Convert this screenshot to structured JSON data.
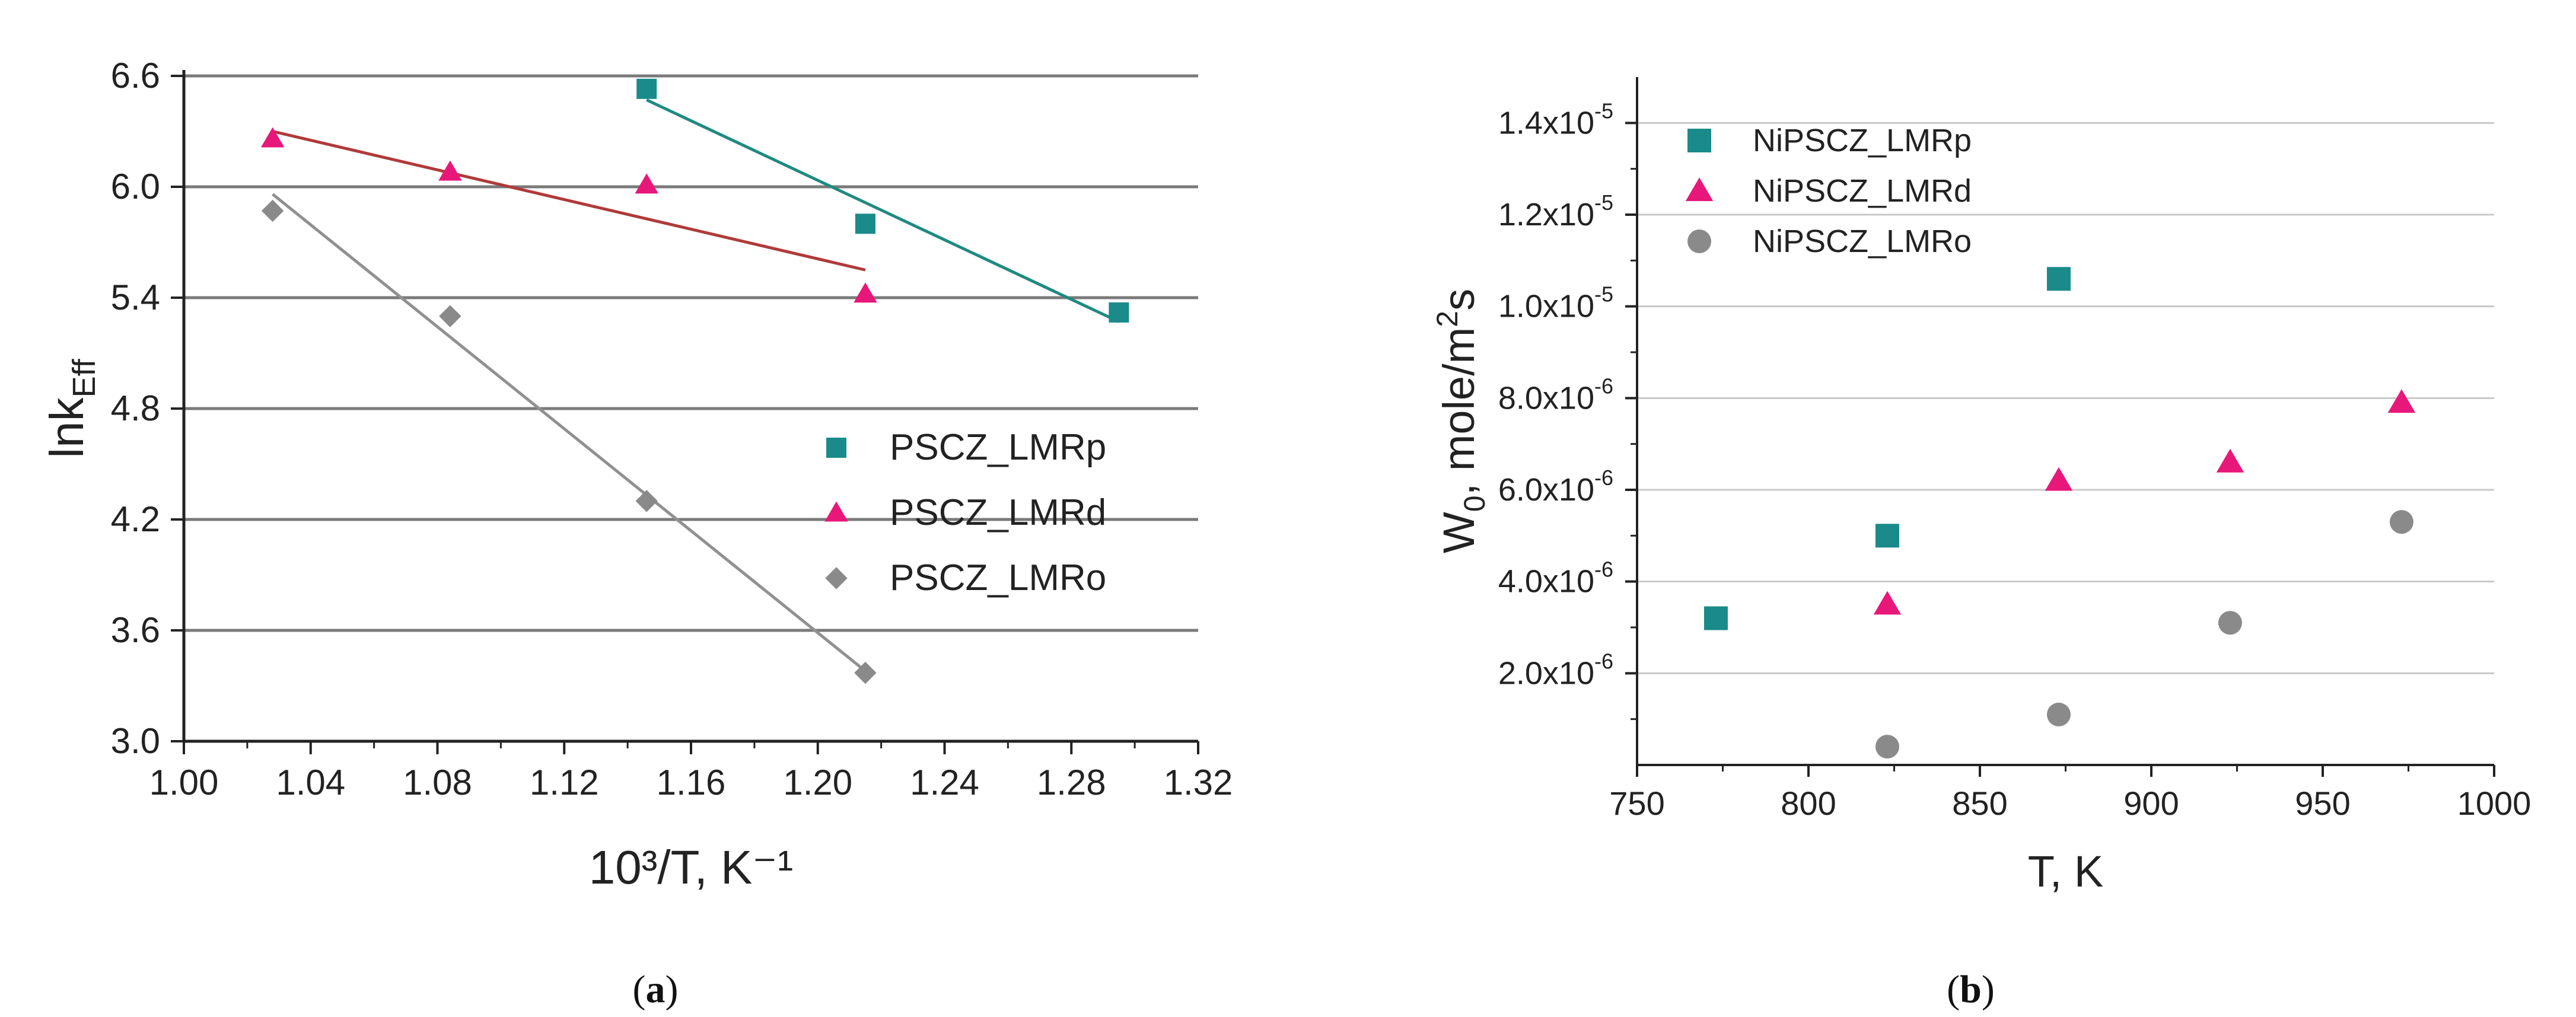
{
  "colors": {
    "p": "#1a8a8a",
    "d": "#e8177a",
    "o": "#8a8a8a",
    "fit_p": "#1f8a80",
    "fit_d": "#b03a3a",
    "fit_o": "#909090"
  },
  "chart_data": [
    {
      "id": "a",
      "type": "scatter",
      "caption_label": "a",
      "xlabel": "10³/T, K⁻¹",
      "ylabel": "lnk_Eff",
      "ylabel_main": "lnk",
      "ylabel_sub": "Eff",
      "xlim": [
        1.0,
        1.32
      ],
      "ylim": [
        3.0,
        6.6
      ],
      "xticks": [
        1.0,
        1.04,
        1.08,
        1.12,
        1.16,
        1.2,
        1.24,
        1.28,
        1.32
      ],
      "xtick_labels": [
        "1.00",
        "1.04",
        "1.08",
        "1.12",
        "1.16",
        "1.20",
        "1.24",
        "1.28",
        "1.32"
      ],
      "yticks": [
        3.0,
        3.6,
        4.2,
        4.8,
        5.4,
        6.0,
        6.6
      ],
      "ytick_labels": [
        "3.0",
        "3.6",
        "4.2",
        "4.8",
        "5.4",
        "6.0",
        "6.6"
      ],
      "grid": "horizontal",
      "legend_position": "right-middle",
      "series": [
        {
          "key": "p",
          "name": "PSCZ_LMRp",
          "marker": "square",
          "x": [
            1.146,
            1.215,
            1.295
          ],
          "y": [
            6.53,
            5.8,
            5.32
          ],
          "fit": {
            "x": [
              1.146,
              1.295
            ],
            "y": [
              6.47,
              5.27
            ]
          }
        },
        {
          "key": "d",
          "name": "PSCZ_LMRd",
          "marker": "triangle",
          "x": [
            1.028,
            1.084,
            1.146,
            1.215
          ],
          "y": [
            6.26,
            6.08,
            6.01,
            5.42
          ],
          "fit": {
            "x": [
              1.028,
              1.215
            ],
            "y": [
              6.3,
              5.55
            ]
          }
        },
        {
          "key": "o",
          "name": "PSCZ_LMRo",
          "marker": "diamond",
          "x": [
            1.028,
            1.084,
            1.146,
            1.215
          ],
          "y": [
            5.87,
            5.3,
            4.3,
            3.37
          ],
          "fit": {
            "x": [
              1.028,
              1.215
            ],
            "y": [
              5.96,
              3.38
            ]
          }
        }
      ]
    },
    {
      "id": "b",
      "type": "scatter",
      "caption_label": "b",
      "xlabel": "T, K",
      "ylabel": "W0, mole/m2s",
      "ylabel_w": "W",
      "ylabel_w_sub": "0",
      "ylabel_rest": ", mole/m",
      "ylabel_sup": "2",
      "ylabel_end": "s",
      "xlim": [
        750,
        1000
      ],
      "ylim": [
        0,
        1.5e-05
      ],
      "xticks": [
        750,
        800,
        850,
        900,
        950,
        1000
      ],
      "xtick_labels": [
        "750",
        "800",
        "850",
        "900",
        "950",
        "1000"
      ],
      "yticks": [
        2e-06,
        4e-06,
        6e-06,
        8e-06,
        1e-05,
        1.2e-05,
        1.4e-05
      ],
      "ytick_mantissa": [
        "2.0x10",
        "4.0x10",
        "6.0x10",
        "8.0x10",
        "1.0x10",
        "1.2x10",
        "1.4x10"
      ],
      "ytick_exponent": [
        "-6",
        "-6",
        "-6",
        "-6",
        "-5",
        "-5",
        "-5"
      ],
      "grid": "horizontal",
      "legend_position": "top-left",
      "series": [
        {
          "key": "p",
          "name": "NiPSCZ_LMRp",
          "marker": "square",
          "x": [
            773,
            823,
            873
          ],
          "y": [
            3.2e-06,
            5e-06,
            1.06e-05
          ]
        },
        {
          "key": "d",
          "name": "NiPSCZ_LMRd",
          "marker": "triangle",
          "x": [
            823,
            873,
            923,
            973
          ],
          "y": [
            3.5e-06,
            6.2e-06,
            6.6e-06,
            7.9e-06
          ]
        },
        {
          "key": "o",
          "name": "NiPSCZ_LMRo",
          "marker": "circle",
          "x": [
            823,
            873,
            923,
            973
          ],
          "y": [
            4e-07,
            1.1e-06,
            3.1e-06,
            5.3e-06
          ]
        }
      ]
    }
  ]
}
